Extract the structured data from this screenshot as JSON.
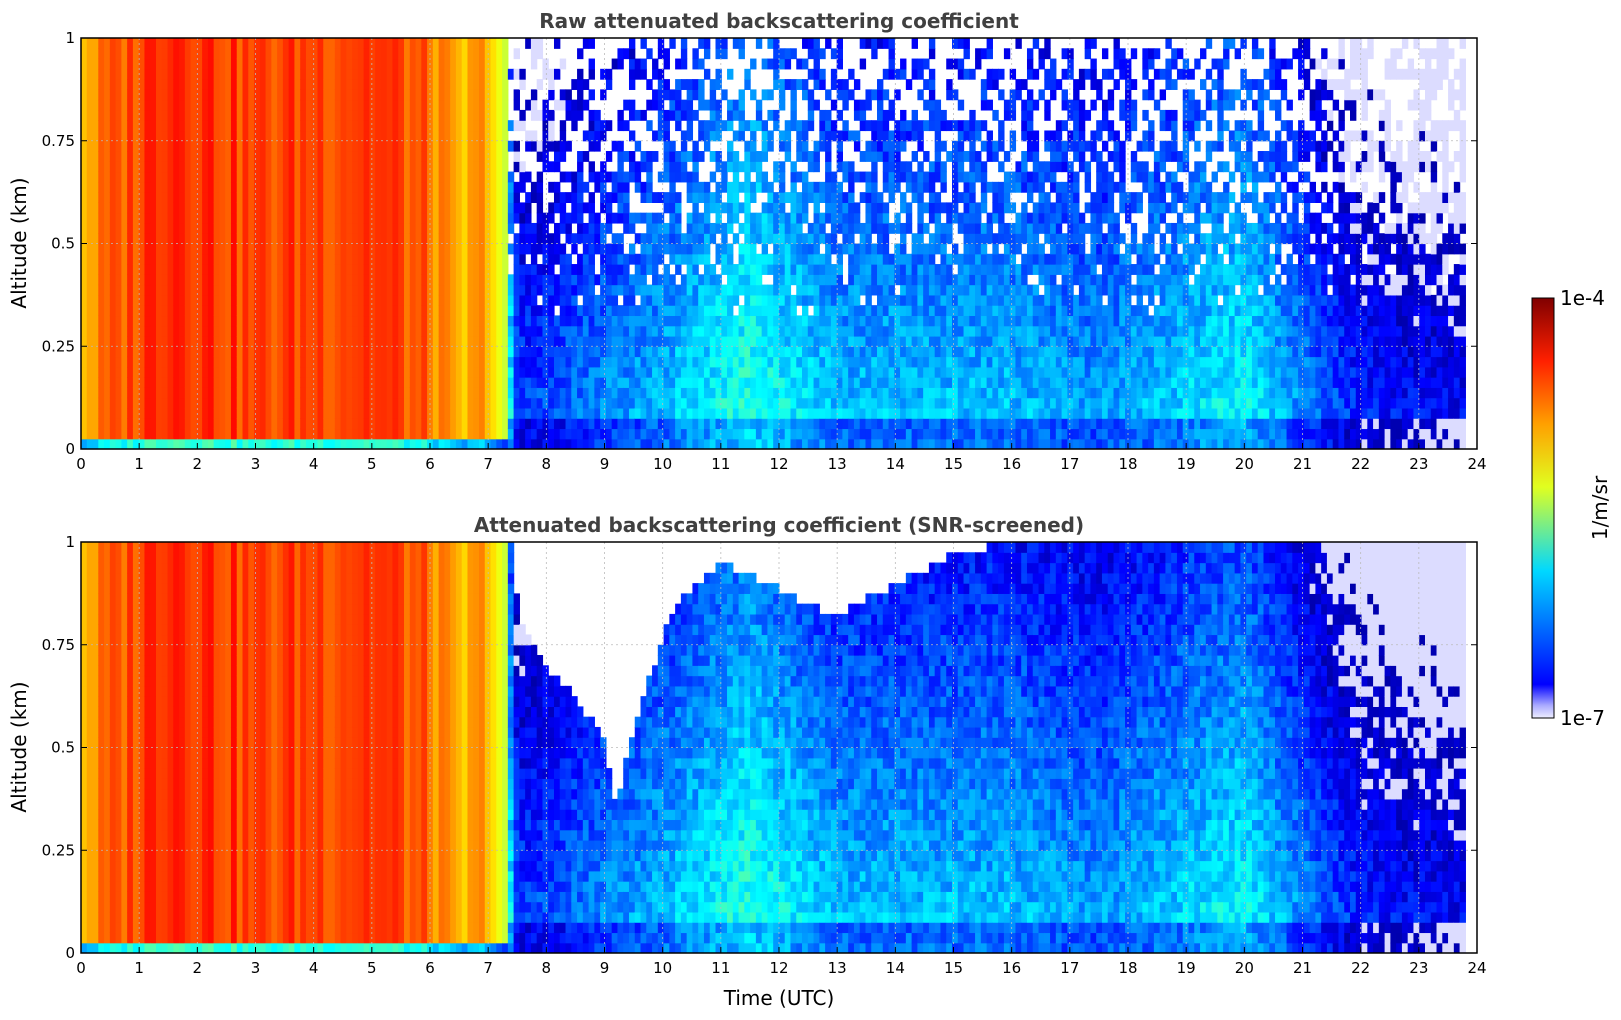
{
  "figure": {
    "colorbar": {
      "label": "1/m/sr",
      "tick_max": "1e-4",
      "tick_min": "1e-7"
    },
    "xlabel": "Time (UTC)"
  },
  "chart_data": [
    {
      "type": "heatmap",
      "title": "Raw attenuated backscattering coefficient",
      "xlabel": "",
      "ylabel": "Altitude (km)",
      "xlim": [
        0,
        24
      ],
      "ylim": [
        0,
        1
      ],
      "xticks": [
        "0",
        "1",
        "2",
        "3",
        "4",
        "5",
        "6",
        "7",
        "8",
        "9",
        "10",
        "11",
        "12",
        "13",
        "14",
        "15",
        "16",
        "17",
        "18",
        "19",
        "20",
        "21",
        "22",
        "23",
        "24"
      ],
      "yticks": [
        "0",
        "0.25",
        "0.5",
        "0.75",
        "1"
      ],
      "grid": true,
      "colorscale": "jet",
      "color_range": [
        "1e-7",
        "1e-4"
      ],
      "log10_level_by_time": [
        {
          "t": 0.0,
          "level": -4.9
        },
        {
          "t": 0.5,
          "level": -4.7
        },
        {
          "t": 1.5,
          "level": -4.4
        },
        {
          "t": 3.0,
          "level": -4.6
        },
        {
          "t": 5.0,
          "level": -4.5
        },
        {
          "t": 6.0,
          "level": -4.7
        },
        {
          "t": 6.5,
          "level": -5.0
        },
        {
          "t": 7.0,
          "level": -4.8
        },
        {
          "t": 7.3,
          "level": -5.4
        },
        {
          "t": 7.5,
          "level": -6.4
        },
        {
          "t": 10.0,
          "level": -6.0
        },
        {
          "t": 11.5,
          "level": -5.7
        },
        {
          "t": 13.0,
          "level": -6.0
        },
        {
          "t": 16.0,
          "level": -6.0
        },
        {
          "t": 17.5,
          "level": -6.1
        },
        {
          "t": 20.0,
          "level": -5.8
        },
        {
          "t": 22.0,
          "level": -6.5
        },
        {
          "t": 23.8,
          "level": -6.6
        }
      ],
      "time_coverage": [
        0,
        23.8
      ],
      "screened": false
    },
    {
      "type": "heatmap",
      "title": "Attenuated backscattering coefficient (SNR-screened)",
      "xlabel": "Time (UTC)",
      "ylabel": "Altitude (km)",
      "xlim": [
        0,
        24
      ],
      "ylim": [
        0,
        1
      ],
      "xticks": [
        "0",
        "1",
        "2",
        "3",
        "4",
        "5",
        "6",
        "7",
        "8",
        "9",
        "10",
        "11",
        "12",
        "13",
        "14",
        "15",
        "16",
        "17",
        "18",
        "19",
        "20",
        "21",
        "22",
        "23",
        "24"
      ],
      "yticks": [
        "0",
        "0.25",
        "0.5",
        "0.75",
        "1"
      ],
      "grid": true,
      "colorscale": "jet",
      "color_range": [
        "1e-7",
        "1e-4"
      ],
      "log10_level_by_time": [
        {
          "t": 0.0,
          "level": -4.9
        },
        {
          "t": 0.5,
          "level": -4.7
        },
        {
          "t": 1.5,
          "level": -4.4
        },
        {
          "t": 3.0,
          "level": -4.6
        },
        {
          "t": 5.0,
          "level": -4.5
        },
        {
          "t": 6.0,
          "level": -4.7
        },
        {
          "t": 6.5,
          "level": -5.0
        },
        {
          "t": 7.0,
          "level": -4.8
        },
        {
          "t": 7.3,
          "level": -5.4
        },
        {
          "t": 7.5,
          "level": -6.4
        },
        {
          "t": 10.0,
          "level": -6.0
        },
        {
          "t": 11.5,
          "level": -5.7
        },
        {
          "t": 13.0,
          "level": -6.0
        },
        {
          "t": 16.0,
          "level": -6.0
        },
        {
          "t": 17.5,
          "level": -6.1
        },
        {
          "t": 20.0,
          "level": -5.8
        },
        {
          "t": 22.0,
          "level": -6.5
        },
        {
          "t": 23.8,
          "level": -6.6
        }
      ],
      "time_coverage": [
        0,
        23.8
      ],
      "screened": true,
      "screened_out_top_km_by_time": [
        {
          "t": 7.4,
          "top_km": 0.95
        },
        {
          "t": 7.6,
          "top_km": 0.78
        },
        {
          "t": 8.0,
          "top_km": 0.7
        },
        {
          "t": 8.5,
          "top_km": 0.62
        },
        {
          "t": 9.0,
          "top_km": 0.52
        },
        {
          "t": 9.2,
          "top_km": 0.35
        },
        {
          "t": 9.5,
          "top_km": 0.55
        },
        {
          "t": 9.8,
          "top_km": 0.68
        },
        {
          "t": 10.2,
          "top_km": 0.85
        },
        {
          "t": 11.0,
          "top_km": 0.95
        },
        {
          "t": 13.0,
          "top_km": 0.82
        },
        {
          "t": 14.0,
          "top_km": 0.9
        },
        {
          "t": 15.0,
          "top_km": 0.97
        },
        {
          "t": 16.0,
          "top_km": 1.0
        }
      ]
    }
  ]
}
